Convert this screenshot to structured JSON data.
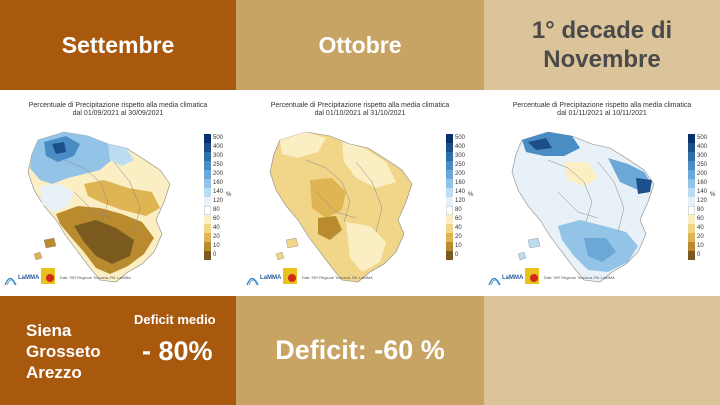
{
  "headers": {
    "september": "Settembre",
    "october": "Ottobre",
    "november_line1": "1° decade di",
    "november_line2": "Novembre"
  },
  "panels": {
    "title": "Percentuale di Precipitazione rispetto alla media climatica",
    "september_dates": "dal 01/09/2021 al 30/09/2021",
    "october_dates": "dal 01/10/2021 al 31/10/2021",
    "november_dates": "dal 01/11/2021 al 10/11/2021",
    "credit": "Dati: SIR Regione Toscana, Ril. LaMMA",
    "logo_text": "LaMMA"
  },
  "legend": {
    "unit": "%",
    "labels": [
      "500",
      "400",
      "300",
      "250",
      "200",
      "160",
      "140",
      "120",
      "80",
      "60",
      "40",
      "20",
      "10",
      "0"
    ],
    "colors": [
      "#08306b",
      "#1a4f8a",
      "#2e6fa8",
      "#4a8cc4",
      "#6ba8d8",
      "#93c4e8",
      "#bcdcf2",
      "#e8f1f8",
      "#ffffff",
      "#fbeec2",
      "#f1d68a",
      "#dfb452",
      "#b98a2e",
      "#7a5a1e"
    ]
  },
  "bottom": {
    "cities": [
      "Siena",
      "Grosseto",
      "Arezzo"
    ],
    "deficit_label": "Deficit medio",
    "deficit_value": "- 80%",
    "october_deficit": "Deficit: -60 %"
  },
  "colors": {
    "september_bg": "#a8590e",
    "october_bg": "#c8a464",
    "november_bg": "#dcc49a"
  }
}
